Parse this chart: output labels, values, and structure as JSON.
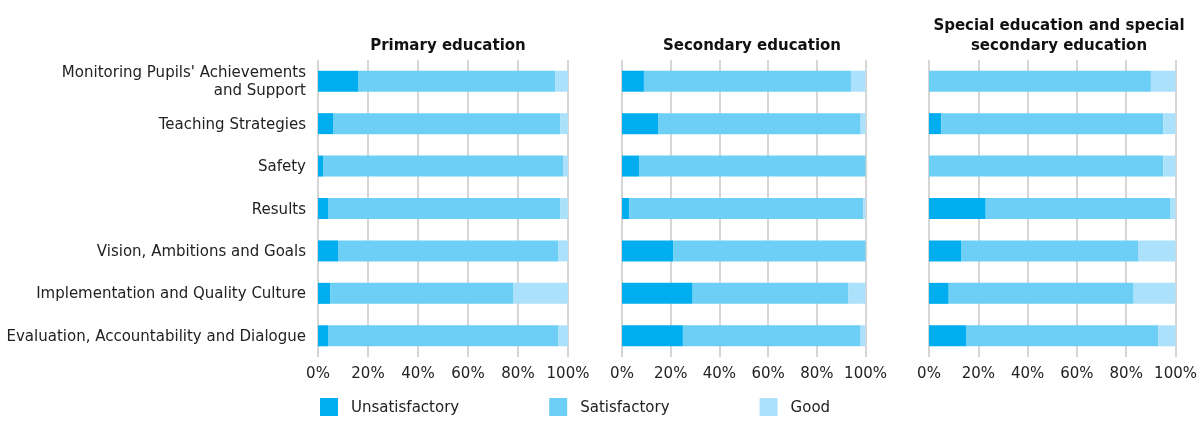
{
  "chart_data": [
    {
      "type": "bar",
      "orientation": "horizontal",
      "stacked": true,
      "title": "Primary education",
      "categories": [
        "Monitoring Pupils' Achievements and Support",
        "Teaching Strategies",
        "Safety",
        "Results",
        "Vision, Ambitions and Goals",
        "Implementation and Quality Culture",
        "Evaluation, Accountability and Dialogue"
      ],
      "series": [
        {
          "name": "Unsatisfactory",
          "color": "#00aeef",
          "values": [
            16,
            6,
            2,
            4,
            8,
            5,
            4
          ]
        },
        {
          "name": "Satisfactory",
          "color": "#6dcff6",
          "values": [
            79,
            91,
            96,
            93,
            88,
            73,
            92
          ]
        },
        {
          "name": "Good",
          "color": "#abe1fa",
          "values": [
            5,
            3,
            2,
            3,
            4,
            22,
            4
          ]
        }
      ],
      "xlim": [
        0,
        100
      ],
      "xticks": [
        {
          "value": 0,
          "label": "0%"
        },
        {
          "value": 20,
          "label": "20%"
        },
        {
          "value": 40,
          "label": "40%"
        },
        {
          "value": 60,
          "label": "60%"
        },
        {
          "value": 80,
          "label": "80%"
        },
        {
          "value": 100,
          "label": "100%"
        }
      ],
      "grid": "x",
      "legend": "bottom"
    },
    {
      "type": "bar",
      "orientation": "horizontal",
      "stacked": true,
      "title": "Secondary education",
      "categories": [
        null,
        null,
        null,
        null,
        null,
        null,
        null
      ],
      "series": [
        {
          "color": "#00aeef",
          "values": [
            9,
            15,
            7,
            3,
            21,
            29,
            25
          ]
        },
        {
          "color": "#6dcff6",
          "values": [
            85,
            83,
            93,
            96,
            79,
            64,
            73
          ]
        },
        {
          "color": "#abe1fa",
          "values": [
            6,
            2,
            0,
            1,
            0,
            7,
            2
          ]
        }
      ],
      "xlim": [
        0,
        100
      ],
      "xticks": [
        {
          "value": 0,
          "label": "0%"
        },
        {
          "value": 20,
          "label": "20%"
        },
        {
          "value": 40,
          "label": "40%"
        },
        {
          "value": 60,
          "label": "60%"
        },
        {
          "value": 80,
          "label": "80%"
        },
        {
          "value": 100,
          "label": "100%"
        }
      ],
      "grid": "x",
      "tick_labels": "x"
    },
    {
      "type": "bar",
      "orientation": "horizontal",
      "stacked": true,
      "title": "Special education and special secondary education",
      "categories": [
        null,
        null,
        null,
        null,
        null,
        null,
        null
      ],
      "series": [
        {
          "color": "#00aeef",
          "values": [
            0,
            5,
            0,
            23,
            13,
            8,
            15
          ]
        },
        {
          "color": "#6dcff6",
          "values": [
            90,
            90,
            95,
            75,
            72,
            75,
            78
          ]
        },
        {
          "color": "#abe1fa",
          "values": [
            10,
            5,
            5,
            2,
            15,
            17,
            7
          ]
        }
      ],
      "xlim": [
        0,
        100
      ],
      "xticks": [
        {
          "value": 0,
          "label": "0%"
        },
        {
          "value": 20,
          "label": "20%"
        },
        {
          "value": 40,
          "label": "40%"
        },
        {
          "value": 60,
          "label": "60%"
        },
        {
          "value": 80,
          "label": "80%"
        },
        {
          "value": 100,
          "label": "100%"
        }
      ],
      "grid": "x",
      "tick_labels": "x"
    }
  ]
}
